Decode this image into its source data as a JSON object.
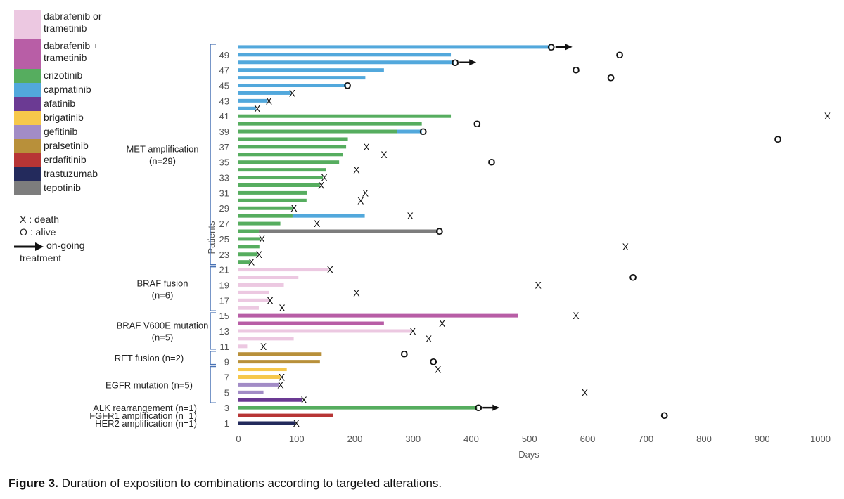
{
  "caption": {
    "label": "Figure 3.",
    "text": " Duration of exposition to combinations according to targeted alterations."
  },
  "legend": [
    {
      "drug": "dabrafenib or trametinib",
      "lines": [
        "dabrafenib or",
        "trametinib"
      ],
      "color": "#ecc8e1"
    },
    {
      "drug": "dabrafenib + trametinib",
      "lines": [
        "dabrafenib +",
        "trametinib"
      ],
      "color": "#b85ea6"
    },
    {
      "drug": "crizotinib",
      "lines": [
        "crizotinib"
      ],
      "color": "#56ad5f"
    },
    {
      "drug": "capmatinib",
      "lines": [
        "capmatinib"
      ],
      "color": "#52a8dc"
    },
    {
      "drug": "afatinib",
      "lines": [
        "afatinib"
      ],
      "color": "#6b3a93"
    },
    {
      "drug": "brigatinib",
      "lines": [
        "brigatinib"
      ],
      "color": "#f6c84b"
    },
    {
      "drug": "gefitinib",
      "lines": [
        "gefitinib"
      ],
      "color": "#a28cc6"
    },
    {
      "drug": "pralsetinib",
      "lines": [
        "pralsetinib"
      ],
      "color": "#b8903a"
    },
    {
      "drug": "erdafitinib",
      "lines": [
        "erdafitinib"
      ],
      "color": "#b73535"
    },
    {
      "drug": "trastuzumab",
      "lines": [
        "trastuzumab"
      ],
      "color": "#232a5c"
    },
    {
      "drug": "tepotinib",
      "lines": [
        "tepotinib"
      ],
      "color": "#7d7d7d"
    }
  ],
  "symbol_key": {
    "death": "X : death",
    "alive": "O : alive",
    "ongoing_line1": "on-going",
    "ongoing_line2": "treatment"
  },
  "chart_data": {
    "type": "bar",
    "orientation": "horizontal swimmer plot",
    "xlabel": "Days",
    "ylabel": "Patients",
    "xlim": [
      0,
      1000
    ],
    "xticks": [
      0,
      100,
      200,
      300,
      400,
      500,
      600,
      700,
      800,
      900,
      1000
    ],
    "ylim": [
      1,
      49
    ],
    "yticks": [
      1,
      3,
      5,
      7,
      9,
      11,
      13,
      15,
      17,
      19,
      21,
      23,
      25,
      27,
      29,
      31,
      33,
      35,
      37,
      39,
      41,
      43,
      45,
      47,
      49
    ],
    "groups": [
      {
        "lines": [
          "MET amplification",
          "(n=29)"
        ],
        "from": 22,
        "to": 50
      },
      {
        "lines": [
          "BRAF fusion",
          "(n=6)"
        ],
        "from": 16,
        "to": 21
      },
      {
        "lines": [
          "BRAF V600E mutation",
          "(n=5)"
        ],
        "from": 11,
        "to": 15
      },
      {
        "lines": [
          "RET fusion (n=2)"
        ],
        "from": 9,
        "to": 10
      },
      {
        "lines": [
          "EGFR mutation (n=5)"
        ],
        "from": 4,
        "to": 8
      }
    ],
    "single_labels": [
      {
        "text": "ALK rearrangement (n=1)",
        "patient": 3
      },
      {
        "text": "FGFR1 amplification (n=1)",
        "patient": 2
      },
      {
        "text": "HER2 amplification (n=1)",
        "patient": 1
      }
    ],
    "series": [
      {
        "patient": 50,
        "segments": [
          {
            "drug": "capmatinib",
            "start": 0,
            "end": 535
          }
        ],
        "bar_marker": "O",
        "ongoing": true,
        "outcome_marker": null,
        "outcome_day": null
      },
      {
        "patient": 49,
        "segments": [
          {
            "drug": "capmatinib",
            "start": 0,
            "end": 365
          }
        ],
        "bar_marker": null,
        "ongoing": false,
        "outcome_marker": "O",
        "outcome_day": 655
      },
      {
        "patient": 48,
        "segments": [
          {
            "drug": "capmatinib",
            "start": 0,
            "end": 370
          }
        ],
        "bar_marker": "O",
        "ongoing": true,
        "outcome_marker": null,
        "outcome_day": null
      },
      {
        "patient": 47,
        "segments": [
          {
            "drug": "capmatinib",
            "start": 0,
            "end": 250
          }
        ],
        "bar_marker": null,
        "ongoing": false,
        "outcome_marker": "O",
        "outcome_day": 580
      },
      {
        "patient": 46,
        "segments": [
          {
            "drug": "capmatinib",
            "start": 0,
            "end": 218
          }
        ],
        "bar_marker": null,
        "ongoing": false,
        "outcome_marker": "O",
        "outcome_day": 640
      },
      {
        "patient": 45,
        "segments": [
          {
            "drug": "capmatinib",
            "start": 0,
            "end": 185
          }
        ],
        "bar_marker": "O",
        "ongoing": false,
        "outcome_marker": null,
        "outcome_day": null
      },
      {
        "patient": 44,
        "segments": [
          {
            "drug": "capmatinib",
            "start": 0,
            "end": 90
          }
        ],
        "bar_marker": "X",
        "ongoing": false,
        "outcome_marker": null,
        "outcome_day": null
      },
      {
        "patient": 43,
        "segments": [
          {
            "drug": "capmatinib",
            "start": 0,
            "end": 50
          }
        ],
        "bar_marker": "X",
        "ongoing": false,
        "outcome_marker": null,
        "outcome_day": null
      },
      {
        "patient": 42,
        "segments": [
          {
            "drug": "capmatinib",
            "start": 0,
            "end": 30
          }
        ],
        "bar_marker": "X",
        "ongoing": false,
        "outcome_marker": null,
        "outcome_day": null
      },
      {
        "patient": 41,
        "segments": [
          {
            "drug": "crizotinib",
            "start": 0,
            "end": 365
          }
        ],
        "bar_marker": null,
        "ongoing": false,
        "outcome_marker": "X",
        "outcome_day": 1012
      },
      {
        "patient": 40,
        "segments": [
          {
            "drug": "crizotinib",
            "start": 0,
            "end": 315
          }
        ],
        "bar_marker": null,
        "ongoing": false,
        "outcome_marker": "O",
        "outcome_day": 410
      },
      {
        "patient": 39,
        "segments": [
          {
            "drug": "crizotinib",
            "start": 0,
            "end": 272
          },
          {
            "drug": "capmatinib",
            "start": 272,
            "end": 315
          }
        ],
        "bar_marker": "O",
        "ongoing": false,
        "outcome_marker": null,
        "outcome_day": null
      },
      {
        "patient": 38,
        "segments": [
          {
            "drug": "crizotinib",
            "start": 0,
            "end": 188
          }
        ],
        "bar_marker": null,
        "ongoing": false,
        "outcome_marker": "O",
        "outcome_day": 927
      },
      {
        "patient": 37,
        "segments": [
          {
            "drug": "crizotinib",
            "start": 0,
            "end": 185
          }
        ],
        "bar_marker": null,
        "ongoing": false,
        "outcome_marker": "X",
        "outcome_day": 220
      },
      {
        "patient": 36,
        "segments": [
          {
            "drug": "crizotinib",
            "start": 0,
            "end": 180
          }
        ],
        "bar_marker": null,
        "ongoing": false,
        "outcome_marker": "X",
        "outcome_day": 250
      },
      {
        "patient": 35,
        "segments": [
          {
            "drug": "crizotinib",
            "start": 0,
            "end": 173
          }
        ],
        "bar_marker": null,
        "ongoing": false,
        "outcome_marker": "O",
        "outcome_day": 435
      },
      {
        "patient": 34,
        "segments": [
          {
            "drug": "crizotinib",
            "start": 0,
            "end": 150
          }
        ],
        "bar_marker": null,
        "ongoing": false,
        "outcome_marker": "X",
        "outcome_day": 203
      },
      {
        "patient": 33,
        "segments": [
          {
            "drug": "crizotinib",
            "start": 0,
            "end": 145
          }
        ],
        "bar_marker": "X",
        "ongoing": false,
        "outcome_marker": null,
        "outcome_day": null
      },
      {
        "patient": 32,
        "segments": [
          {
            "drug": "crizotinib",
            "start": 0,
            "end": 140
          }
        ],
        "bar_marker": "X",
        "ongoing": false,
        "outcome_marker": null,
        "outcome_day": null
      },
      {
        "patient": 31,
        "segments": [
          {
            "drug": "crizotinib",
            "start": 0,
            "end": 118
          }
        ],
        "bar_marker": null,
        "ongoing": false,
        "outcome_marker": "X",
        "outcome_day": 218
      },
      {
        "patient": 30,
        "segments": [
          {
            "drug": "crizotinib",
            "start": 0,
            "end": 117
          }
        ],
        "bar_marker": null,
        "ongoing": false,
        "outcome_marker": "X",
        "outcome_day": 210
      },
      {
        "patient": 29,
        "segments": [
          {
            "drug": "crizotinib",
            "start": 0,
            "end": 93
          }
        ],
        "bar_marker": "X",
        "ongoing": false,
        "outcome_marker": null,
        "outcome_day": null
      },
      {
        "patient": 28,
        "segments": [
          {
            "drug": "crizotinib",
            "start": 0,
            "end": 93
          },
          {
            "drug": "capmatinib",
            "start": 93,
            "end": 217
          }
        ],
        "bar_marker": null,
        "ongoing": false,
        "outcome_marker": "X",
        "outcome_day": 295
      },
      {
        "patient": 27,
        "segments": [
          {
            "drug": "crizotinib",
            "start": 0,
            "end": 72
          }
        ],
        "bar_marker": null,
        "ongoing": false,
        "outcome_marker": "X",
        "outcome_day": 135
      },
      {
        "patient": 26,
        "segments": [
          {
            "drug": "crizotinib",
            "start": 0,
            "end": 35
          },
          {
            "drug": "tepotinib",
            "start": 35,
            "end": 343
          }
        ],
        "bar_marker": "O",
        "ongoing": false,
        "outcome_marker": null,
        "outcome_day": null
      },
      {
        "patient": 25,
        "segments": [
          {
            "drug": "crizotinib",
            "start": 0,
            "end": 38
          }
        ],
        "bar_marker": "X",
        "ongoing": false,
        "outcome_marker": null,
        "outcome_day": null
      },
      {
        "patient": 24,
        "segments": [
          {
            "drug": "crizotinib",
            "start": 0,
            "end": 36
          }
        ],
        "bar_marker": null,
        "ongoing": false,
        "outcome_marker": "X",
        "outcome_day": 665
      },
      {
        "patient": 23,
        "segments": [
          {
            "drug": "crizotinib",
            "start": 0,
            "end": 33
          }
        ],
        "bar_marker": "X",
        "ongoing": false,
        "outcome_marker": null,
        "outcome_day": null
      },
      {
        "patient": 22,
        "segments": [
          {
            "drug": "crizotinib",
            "start": 0,
            "end": 20
          }
        ],
        "bar_marker": "X",
        "ongoing": false,
        "outcome_marker": null,
        "outcome_day": null
      },
      {
        "patient": 21,
        "segments": [
          {
            "drug": "dabrafenib or trametinib",
            "start": 0,
            "end": 155
          }
        ],
        "bar_marker": "X",
        "ongoing": false,
        "outcome_marker": null,
        "outcome_day": null
      },
      {
        "patient": 20,
        "segments": [
          {
            "drug": "dabrafenib or trametinib",
            "start": 0,
            "end": 103
          }
        ],
        "bar_marker": null,
        "ongoing": false,
        "outcome_marker": "O",
        "outcome_day": 678
      },
      {
        "patient": 19,
        "segments": [
          {
            "drug": "dabrafenib or trametinib",
            "start": 0,
            "end": 78
          }
        ],
        "bar_marker": null,
        "ongoing": false,
        "outcome_marker": "X",
        "outcome_day": 515
      },
      {
        "patient": 18,
        "segments": [
          {
            "drug": "dabrafenib or trametinib",
            "start": 0,
            "end": 52
          }
        ],
        "bar_marker": null,
        "ongoing": false,
        "outcome_marker": "X",
        "outcome_day": 203
      },
      {
        "patient": 17,
        "segments": [
          {
            "drug": "dabrafenib or trametinib",
            "start": 0,
            "end": 52
          }
        ],
        "bar_marker": "X",
        "ongoing": false,
        "outcome_marker": null,
        "outcome_day": null
      },
      {
        "patient": 16,
        "segments": [
          {
            "drug": "dabrafenib or trametinib",
            "start": 0,
            "end": 35
          }
        ],
        "bar_marker": null,
        "ongoing": false,
        "outcome_marker": "X",
        "outcome_day": 75
      },
      {
        "patient": 15,
        "segments": [
          {
            "drug": "dabrafenib + trametinib",
            "start": 0,
            "end": 480
          }
        ],
        "bar_marker": null,
        "ongoing": false,
        "outcome_marker": "X",
        "outcome_day": 580
      },
      {
        "patient": 14,
        "segments": [
          {
            "drug": "dabrafenib + trametinib",
            "start": 0,
            "end": 250
          }
        ],
        "bar_marker": null,
        "ongoing": false,
        "outcome_marker": "X",
        "outcome_day": 350
      },
      {
        "patient": 13,
        "segments": [
          {
            "drug": "dabrafenib or trametinib",
            "start": 0,
            "end": 297
          }
        ],
        "bar_marker": "X",
        "ongoing": false,
        "outcome_marker": null,
        "outcome_day": null
      },
      {
        "patient": 12,
        "segments": [
          {
            "drug": "dabrafenib or trametinib",
            "start": 0,
            "end": 95
          }
        ],
        "bar_marker": null,
        "ongoing": false,
        "outcome_marker": "X",
        "outcome_day": 327
      },
      {
        "patient": 11,
        "segments": [
          {
            "drug": "dabrafenib or trametinib",
            "start": 0,
            "end": 15
          }
        ],
        "bar_marker": null,
        "ongoing": false,
        "outcome_marker": "X",
        "outcome_day": 43
      },
      {
        "patient": 10,
        "segments": [
          {
            "drug": "pralsetinib",
            "start": 0,
            "end": 143
          }
        ],
        "bar_marker": null,
        "ongoing": false,
        "outcome_marker": "O",
        "outcome_day": 285
      },
      {
        "patient": 9,
        "segments": [
          {
            "drug": "pralsetinib",
            "start": 0,
            "end": 140
          }
        ],
        "bar_marker": null,
        "ongoing": false,
        "outcome_marker": "O",
        "outcome_day": 335
      },
      {
        "patient": 8,
        "segments": [
          {
            "drug": "brigatinib",
            "start": 0,
            "end": 83
          }
        ],
        "bar_marker": null,
        "ongoing": false,
        "outcome_marker": "X",
        "outcome_day": 343
      },
      {
        "patient": 7,
        "segments": [
          {
            "drug": "brigatinib",
            "start": 0,
            "end": 72
          }
        ],
        "bar_marker": "X",
        "ongoing": false,
        "outcome_marker": null,
        "outcome_day": null
      },
      {
        "patient": 6,
        "segments": [
          {
            "drug": "gefitinib",
            "start": 0,
            "end": 70
          }
        ],
        "bar_marker": "X",
        "ongoing": false,
        "outcome_marker": null,
        "outcome_day": null
      },
      {
        "patient": 5,
        "segments": [
          {
            "drug": "gefitinib",
            "start": 0,
            "end": 43
          }
        ],
        "bar_marker": null,
        "ongoing": false,
        "outcome_marker": "X",
        "outcome_day": 595
      },
      {
        "patient": 4,
        "segments": [
          {
            "drug": "afatinib",
            "start": 0,
            "end": 110
          }
        ],
        "bar_marker": "X",
        "ongoing": false,
        "outcome_marker": null,
        "outcome_day": null
      },
      {
        "patient": 3,
        "segments": [
          {
            "drug": "crizotinib",
            "start": 0,
            "end": 410
          }
        ],
        "bar_marker": "O",
        "ongoing": true,
        "outcome_marker": null,
        "outcome_day": null
      },
      {
        "patient": 2,
        "segments": [
          {
            "drug": "erdafitinib",
            "start": 0,
            "end": 162
          }
        ],
        "bar_marker": null,
        "ongoing": false,
        "outcome_marker": "O",
        "outcome_day": 732
      },
      {
        "patient": 1,
        "segments": [
          {
            "drug": "trastuzumab",
            "start": 0,
            "end": 97
          }
        ],
        "bar_marker": "X",
        "ongoing": false,
        "outcome_marker": null,
        "outcome_day": null
      }
    ]
  }
}
